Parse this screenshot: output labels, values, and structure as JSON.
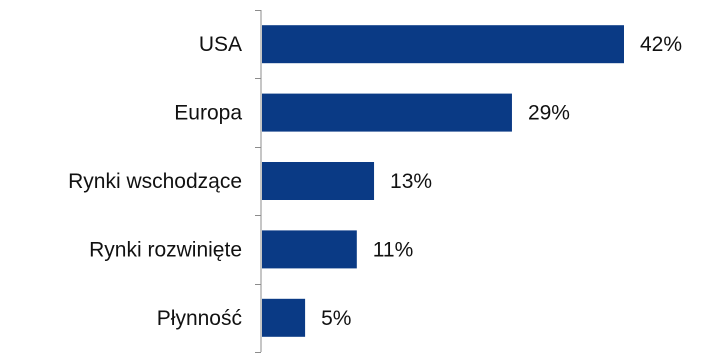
{
  "chart_data": {
    "type": "bar",
    "orientation": "horizontal",
    "categories": [
      "USA",
      "Europa",
      "Rynki wschodzące",
      "Rynki rozwinięte",
      "Płynność"
    ],
    "values": [
      42,
      29,
      13,
      11,
      5
    ],
    "value_labels": [
      "42%",
      "29%",
      "13%",
      "11%",
      "5%"
    ],
    "unit": "%",
    "xlim": [
      0,
      50
    ],
    "grid": false,
    "legend": "none",
    "bar_color": "#0a3a85",
    "axis_color": "#8c8c8c"
  }
}
